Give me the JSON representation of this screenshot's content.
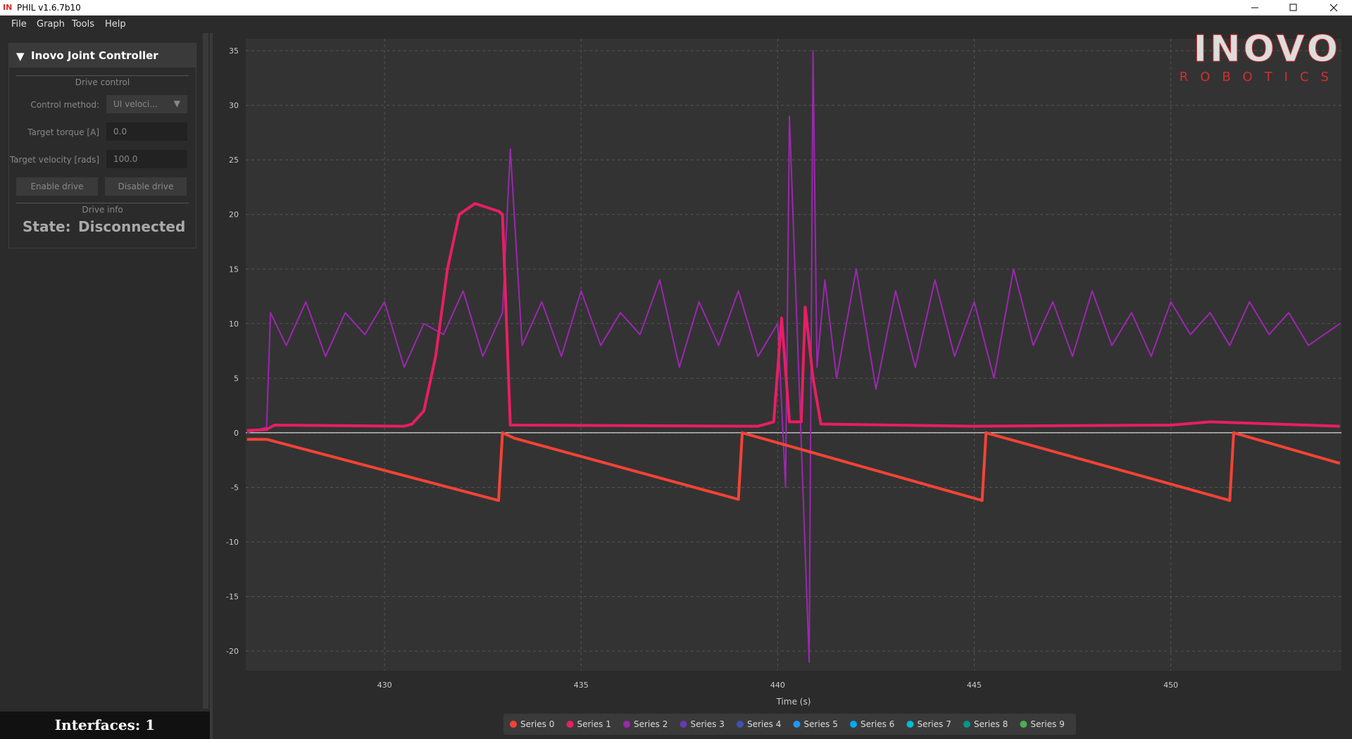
{
  "window": {
    "icon": "IN",
    "title": "PHIL v1.6.7b10"
  },
  "menu": [
    "File",
    "Graph",
    "Tools",
    "Help"
  ],
  "panel": {
    "title": "Inovo Joint Controller",
    "drive_control": "Drive control",
    "control_method_label": "Control method:",
    "control_method_value": "UI veloci...",
    "target_torque_label": "Target torque [A]",
    "target_torque_value": "0.0",
    "target_velocity_label": "Target velocity [rads]",
    "target_velocity_value": "100.0",
    "enable_button": "Enable drive",
    "disable_button": "Disable drive",
    "drive_info": "Drive info",
    "state_label": "State:",
    "state_value": "Disconnected"
  },
  "status_bar": {
    "interfaces": "Interfaces: 1"
  },
  "logo": {
    "name": "INOVO",
    "tagline": "ROBOTICS"
  },
  "chart_data": {
    "type": "line",
    "x_label": "Time (s)",
    "xlim": [
      426.47,
      454.34
    ],
    "ylim": [
      -21.8,
      36.1
    ],
    "xticks": [
      430,
      435,
      440,
      445,
      450
    ],
    "yticks": [
      -20,
      -15,
      -10,
      -5,
      0,
      5,
      10,
      15,
      20,
      25,
      30,
      35
    ],
    "grid": true,
    "series": [
      {
        "name": "Series 0",
        "color": "#f44336",
        "x": [
          426.5,
          427.0,
          432.9,
          433.0,
          433.3,
          439.0,
          439.1,
          445.2,
          445.3,
          451.5,
          451.6,
          454.3
        ],
        "values": [
          -0.6,
          -0.6,
          -6.2,
          0,
          -0.5,
          -6.1,
          0,
          -6.2,
          0,
          -6.2,
          0,
          -2.8
        ]
      },
      {
        "name": "Series 1",
        "color": "#e91e63",
        "x": [
          426.5,
          427.0,
          427.2,
          430.5,
          430.7,
          431.0,
          431.3,
          431.6,
          431.9,
          432.3,
          432.9,
          433.0,
          433.2,
          439.5,
          439.9,
          440.1,
          440.3,
          440.6,
          440.7,
          440.9,
          441.1,
          445,
          450,
          451,
          454.3
        ],
        "values": [
          0.2,
          0.3,
          0.7,
          0.6,
          0.8,
          2,
          7,
          15,
          20,
          21,
          20.3,
          20,
          0.7,
          0.6,
          1,
          10.5,
          1,
          1,
          11.5,
          5,
          0.8,
          0.6,
          0.7,
          1,
          0.6
        ]
      },
      {
        "name": "Series 2",
        "color": "#9c27b0",
        "x": [
          426.5,
          427.0,
          427.1,
          427.5,
          428,
          428.5,
          429,
          429.5,
          430,
          430.5,
          431,
          431.5,
          432,
          432.5,
          433,
          433.2,
          433.5,
          434,
          434.5,
          435,
          435.5,
          436,
          436.5,
          437,
          437.5,
          438,
          438.5,
          439,
          439.5,
          440,
          440.2,
          440.3,
          440.5,
          440.8,
          440.9,
          441.0,
          441.2,
          441.5,
          442,
          442.5,
          443,
          443.5,
          444,
          444.5,
          445,
          445.5,
          446,
          446.5,
          447,
          447.5,
          448,
          448.5,
          449,
          449.5,
          450,
          450.5,
          451,
          451.5,
          452,
          452.5,
          453,
          453.5,
          454.3
        ],
        "values": [
          0,
          0.5,
          11,
          8,
          12,
          7,
          11,
          9,
          12,
          6,
          10,
          9,
          13,
          7,
          11,
          26,
          8,
          12,
          7,
          13,
          8,
          11,
          9,
          14,
          6,
          12,
          8,
          13,
          7,
          10,
          -5,
          29,
          9,
          -21,
          35,
          6,
          14,
          5,
          15,
          4,
          13,
          6,
          14,
          7,
          12,
          5,
          15,
          8,
          12,
          7,
          13,
          8,
          11,
          7,
          12,
          9,
          11,
          8,
          12,
          9,
          11,
          8,
          10
        ]
      },
      {
        "name": "Series 3",
        "color": "#673ab7"
      },
      {
        "name": "Series 4",
        "color": "#3f51b5"
      },
      {
        "name": "Series 5",
        "color": "#2196f3"
      },
      {
        "name": "Series 6",
        "color": "#03a9f4"
      },
      {
        "name": "Series 7",
        "color": "#00bcd4"
      },
      {
        "name": "Series 8",
        "color": "#009688"
      },
      {
        "name": "Series 9",
        "color": "#4caf50"
      }
    ]
  }
}
